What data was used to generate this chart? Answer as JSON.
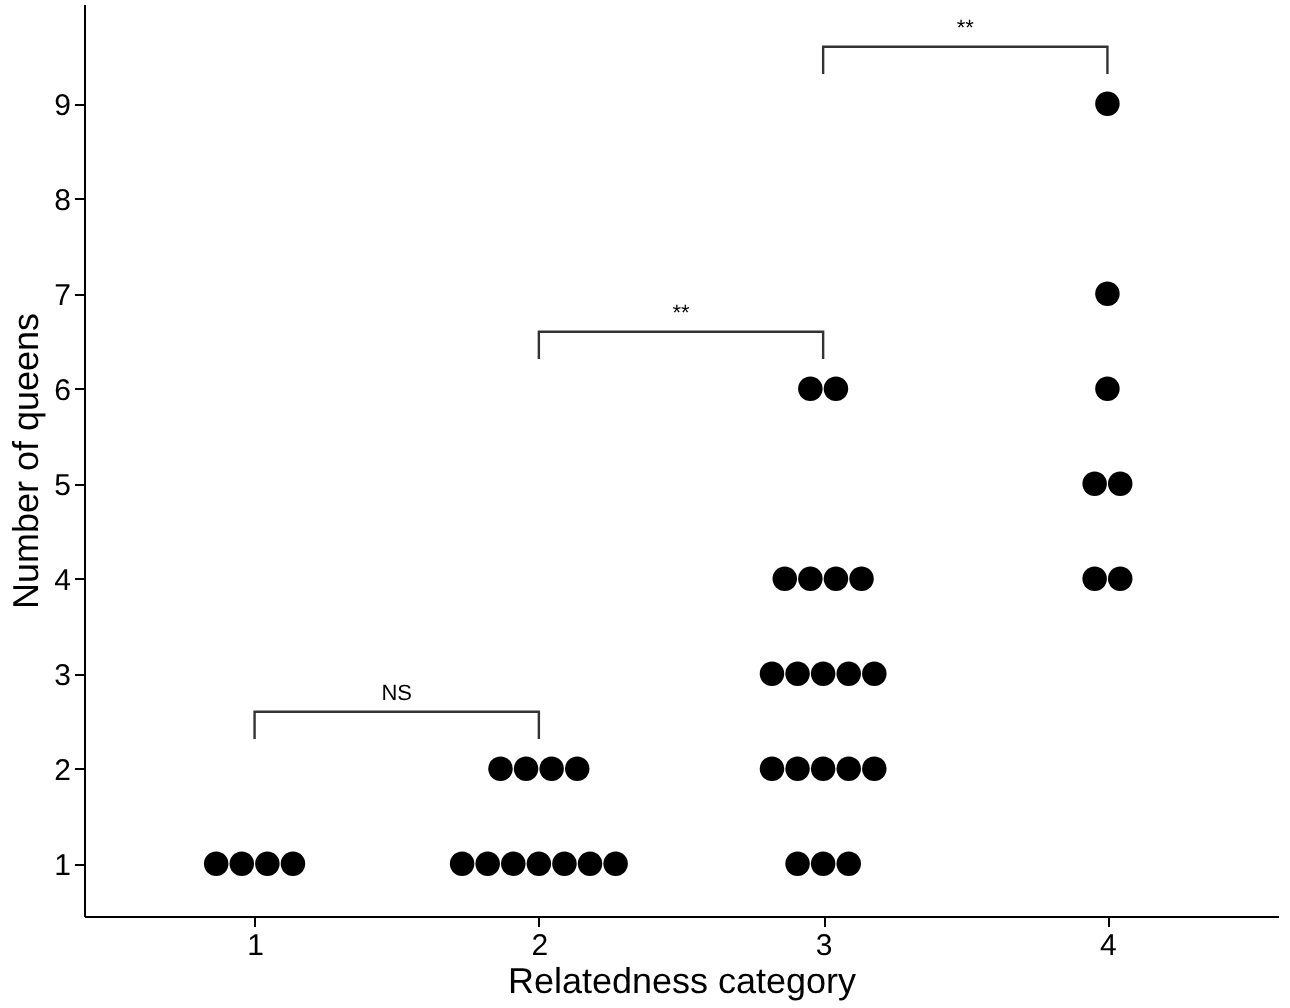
{
  "chart_data": {
    "type": "scatter",
    "xlabel": "Relatedness category",
    "ylabel": "Number of queens",
    "xlim": [
      0.4,
      4.6
    ],
    "xticks": [
      1,
      2,
      3,
      4
    ],
    "ylim": [
      0.45,
      10.05
    ],
    "yticks": [
      1,
      2,
      3,
      4,
      5,
      6,
      7,
      8,
      9
    ],
    "grid": false,
    "marker": "circle",
    "series": [
      {
        "color": "#000000",
        "x": [
          0.865,
          0.955,
          1.045,
          1.135,
          1.73,
          1.82,
          1.91,
          2.0,
          2.09,
          2.18,
          2.27,
          1.865,
          1.955,
          2.045,
          2.135,
          2.91,
          3.0,
          3.09,
          2.82,
          2.91,
          3.0,
          3.09,
          3.18,
          2.82,
          2.91,
          3.0,
          3.09,
          3.18,
          2.865,
          2.955,
          3.045,
          3.135,
          2.955,
          3.045,
          3.955,
          4.045,
          3.955,
          4.045,
          4.0,
          4.0,
          4.0
        ],
        "values": [
          1,
          1,
          1,
          1,
          1,
          1,
          1,
          1,
          1,
          1,
          1,
          2,
          2,
          2,
          2,
          1,
          1,
          1,
          2,
          2,
          2,
          2,
          2,
          3,
          3,
          3,
          3,
          3,
          4,
          4,
          4,
          4,
          6,
          6,
          4,
          4,
          5,
          5,
          6,
          7,
          9
        ]
      }
    ],
    "annotations": [
      "NS",
      "**",
      "**"
    ]
  }
}
